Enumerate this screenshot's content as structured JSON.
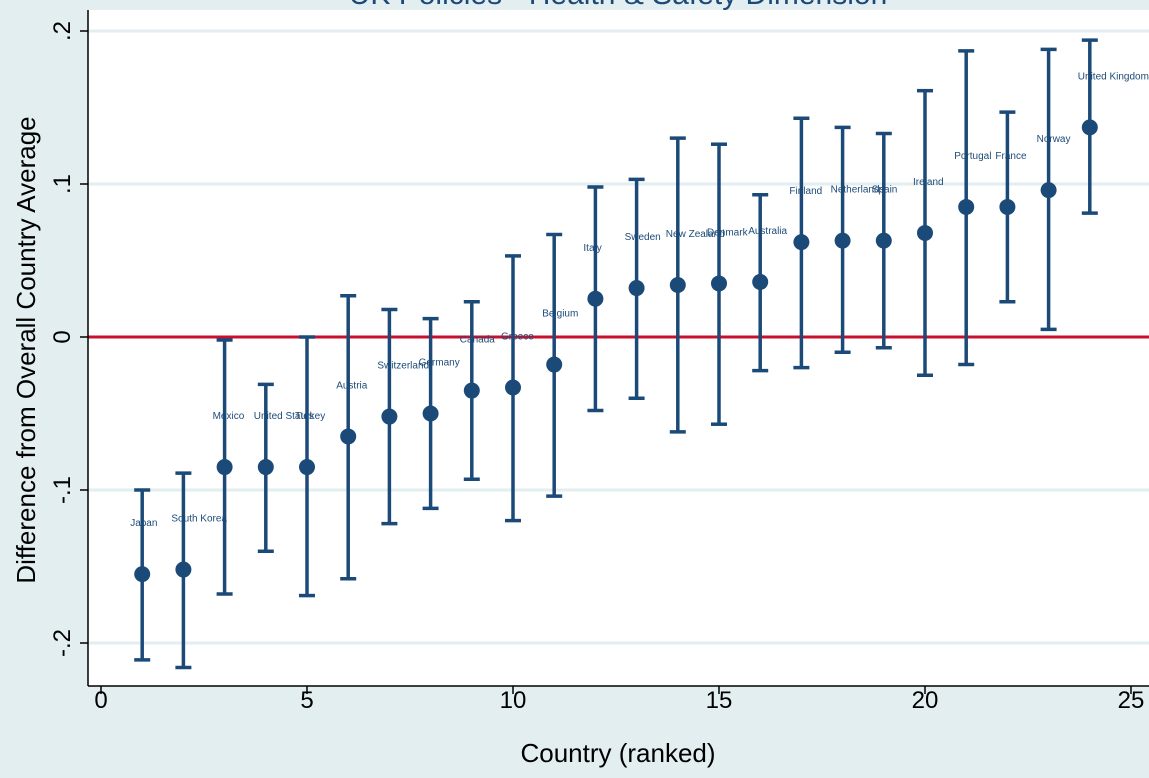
{
  "chart_data": {
    "type": "scatter",
    "title": "UK Policies - Health & Safety Dimension",
    "xlabel": "Country (ranked)",
    "ylabel": "Difference from Overall Country Average",
    "xlim": [
      0,
      25
    ],
    "ylim": [
      -0.23,
      0.21
    ],
    "x_ticks": [
      0,
      5,
      10,
      15,
      20,
      25
    ],
    "y_ticks": [
      -0.2,
      -0.1,
      0,
      0.1,
      0.2
    ],
    "x_tick_labels": [
      "0",
      "5",
      "10",
      "15",
      "20",
      "25"
    ],
    "y_tick_labels": [
      "-.2",
      "-.1",
      "0",
      ".1",
      ".2"
    ],
    "reference_line": {
      "y": 0,
      "color": "#c8102e"
    },
    "grid": true,
    "colors": {
      "marker": "#1c4a78",
      "plot_background": "#ffffff",
      "outer_background": "#e2eef0",
      "grid": "#e2eef0"
    },
    "points": [
      {
        "x": 1,
        "y": -0.155,
        "lo": -0.211,
        "hi": -0.1,
        "label": "Japan"
      },
      {
        "x": 2,
        "y": -0.152,
        "lo": -0.216,
        "hi": -0.089,
        "label": "South Korea"
      },
      {
        "x": 3,
        "y": -0.085,
        "lo": -0.168,
        "hi": -0.002,
        "label": "Mexico"
      },
      {
        "x": 4,
        "y": -0.085,
        "lo": -0.14,
        "hi": -0.031,
        "label": "United States"
      },
      {
        "x": 5,
        "y": -0.085,
        "lo": -0.169,
        "hi": 0.0,
        "label": "Turkey"
      },
      {
        "x": 6,
        "y": -0.065,
        "lo": -0.158,
        "hi": 0.027,
        "label": "Austria"
      },
      {
        "x": 7,
        "y": -0.052,
        "lo": -0.122,
        "hi": 0.018,
        "label": "Switzerland"
      },
      {
        "x": 8,
        "y": -0.05,
        "lo": -0.112,
        "hi": 0.012,
        "label": "Germany"
      },
      {
        "x": 9,
        "y": -0.035,
        "lo": -0.093,
        "hi": 0.023,
        "label": "Canada"
      },
      {
        "x": 10,
        "y": -0.033,
        "lo": -0.12,
        "hi": 0.053,
        "label": "Greece"
      },
      {
        "x": 11,
        "y": -0.018,
        "lo": -0.104,
        "hi": 0.067,
        "label": "Belgium"
      },
      {
        "x": 12,
        "y": 0.025,
        "lo": -0.048,
        "hi": 0.098,
        "label": "Italy"
      },
      {
        "x": 13,
        "y": 0.032,
        "lo": -0.04,
        "hi": 0.103,
        "label": "Sweden"
      },
      {
        "x": 14,
        "y": 0.034,
        "lo": -0.062,
        "hi": 0.13,
        "label": "New Zealand"
      },
      {
        "x": 15,
        "y": 0.035,
        "lo": -0.057,
        "hi": 0.126,
        "label": "Denmark"
      },
      {
        "x": 16,
        "y": 0.036,
        "lo": -0.022,
        "hi": 0.093,
        "label": "Australia"
      },
      {
        "x": 17,
        "y": 0.062,
        "lo": -0.02,
        "hi": 0.143,
        "label": "Finland"
      },
      {
        "x": 18,
        "y": 0.063,
        "lo": -0.01,
        "hi": 0.137,
        "label": "Netherlands"
      },
      {
        "x": 19,
        "y": 0.063,
        "lo": -0.007,
        "hi": 0.133,
        "label": "Spain"
      },
      {
        "x": 20,
        "y": 0.068,
        "lo": -0.025,
        "hi": 0.161,
        "label": "Ireland"
      },
      {
        "x": 21,
        "y": 0.085,
        "lo": -0.018,
        "hi": 0.187,
        "label": "Portugal"
      },
      {
        "x": 22,
        "y": 0.085,
        "lo": 0.023,
        "hi": 0.147,
        "label": "France"
      },
      {
        "x": 23,
        "y": 0.096,
        "lo": 0.005,
        "hi": 0.188,
        "label": "Norway"
      },
      {
        "x": 24,
        "y": 0.137,
        "lo": 0.081,
        "hi": 0.194,
        "label": "United Kingdom"
      }
    ]
  }
}
